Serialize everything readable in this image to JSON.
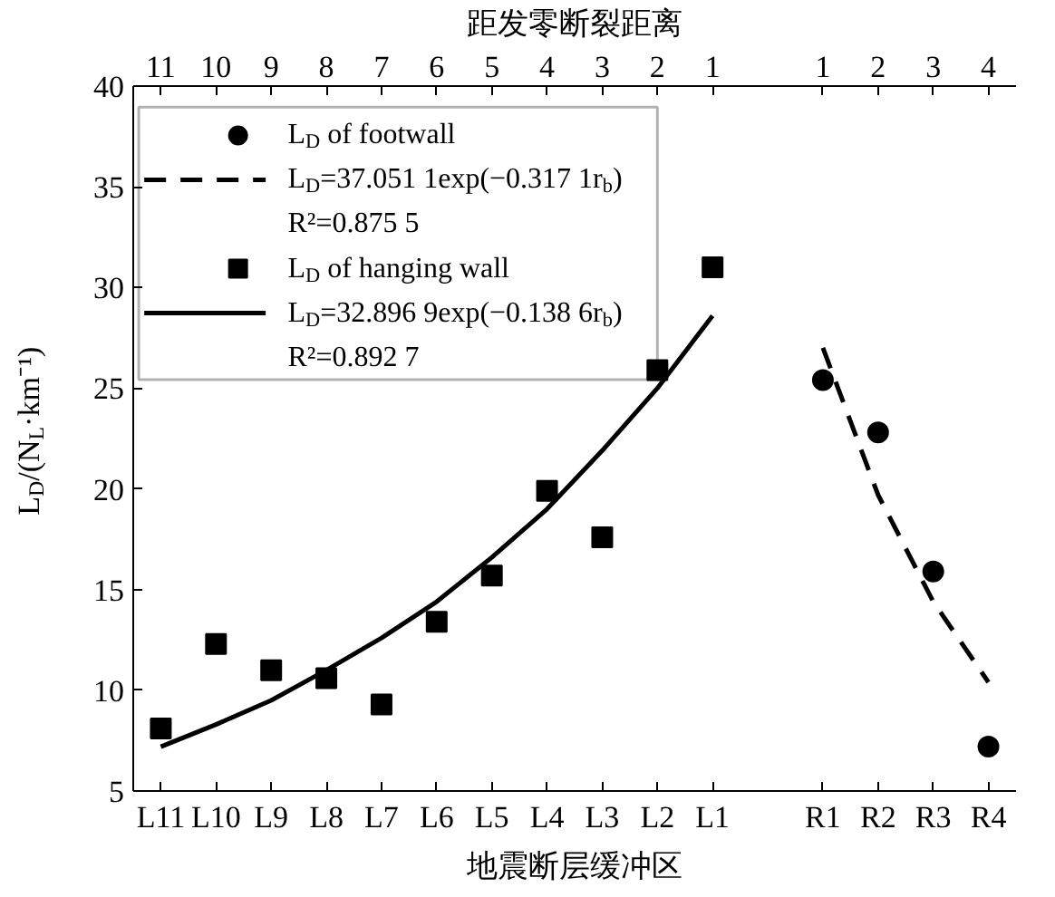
{
  "chart_data": {
    "type": "scatter",
    "xlabel": "地震断层缓冲区",
    "ylabel": "L$_{D}$/(N$_{L}$·km⁻¹)",
    "x2label": "距发零断裂距离",
    "categories": [
      "L11",
      "L10",
      "L9",
      "L8",
      "L7",
      "L6",
      "L5",
      "L4",
      "L3",
      "L2",
      "L1",
      null,
      "R1",
      "R2",
      "R3",
      "R4"
    ],
    "annotations": [
      {
        "text": "11",
        "x": "L11"
      },
      {
        "text": "10",
        "x": "L10"
      },
      {
        "text": "9",
        "x": "L9"
      },
      {
        "text": "8",
        "x": "L8"
      },
      {
        "text": "7",
        "x": "L7"
      },
      {
        "text": "6",
        "x": "L6"
      },
      {
        "text": "5",
        "x": "L5"
      },
      {
        "text": "4",
        "x": "L4"
      },
      {
        "text": "3",
        "x": "L3"
      },
      {
        "text": "2",
        "x": "L2"
      },
      {
        "text": "1",
        "x": "L1"
      },
      {
        "text": "1",
        "x": "R1"
      },
      {
        "text": "2",
        "x": "R2"
      },
      {
        "text": "3",
        "x": "R3"
      },
      {
        "text": "4",
        "x": "R4"
      }
    ],
    "ylim": [
      5,
      40
    ],
    "yticks": [
      5,
      10,
      15,
      20,
      25,
      30,
      35,
      40
    ],
    "grid": false,
    "legend": "top left",
    "series": [
      {
        "name": "L$_{D}$ of footwall",
        "marker": "circle",
        "color": "#000000",
        "values": [
          null,
          null,
          null,
          null,
          null,
          null,
          null,
          null,
          null,
          null,
          null,
          null,
          25.4,
          22.8,
          15.9,
          7.2
        ]
      },
      {
        "name": "L$_{D}$=37.051 1exp(−0.317 1r$_{b}$)\nR²=0.875 5",
        "type": "line",
        "line_style": "dashed",
        "color": "#000000",
        "values": [
          null,
          null,
          null,
          null,
          null,
          null,
          null,
          null,
          null,
          null,
          null,
          null,
          27.0,
          19.7,
          14.4,
          10.4
        ]
      },
      {
        "name": "L$_{D}$ of hanging wall",
        "marker": "square",
        "color": "#000000",
        "values": [
          8.1,
          12.3,
          11.0,
          10.6,
          9.3,
          13.4,
          15.7,
          19.9,
          17.6,
          25.9,
          31.0,
          null,
          null,
          null,
          null,
          null
        ]
      },
      {
        "name": "L$_{D}$=32.896 9exp(−0.138 6r$_{b}$)\nR²=0.892 7",
        "type": "line",
        "line_style": "solid",
        "color": "#000000",
        "values": [
          7.2,
          8.3,
          9.5,
          11.0,
          12.6,
          14.4,
          16.6,
          19.0,
          21.9,
          25.0,
          28.6,
          null,
          null,
          null,
          null,
          null
        ]
      }
    ]
  }
}
